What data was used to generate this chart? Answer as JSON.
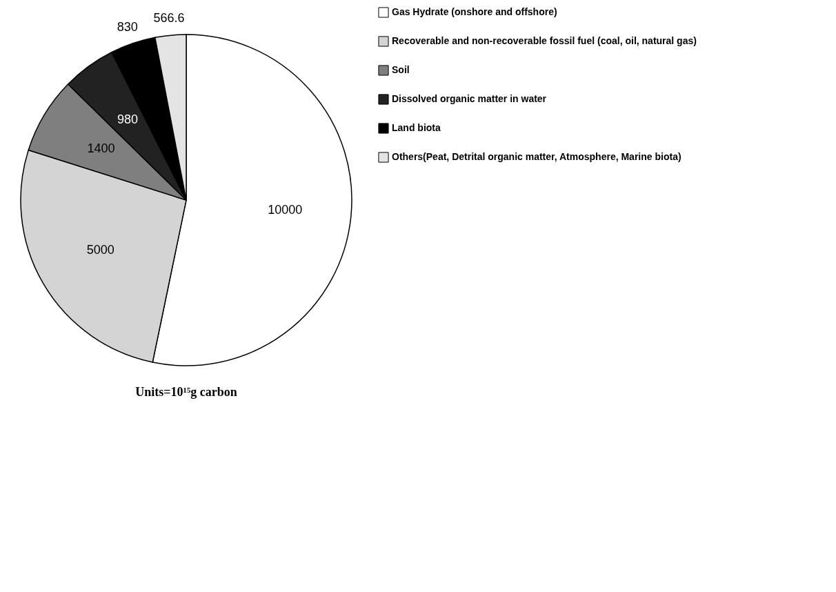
{
  "chart_data": {
    "type": "pie",
    "categories": [
      "Gas Hydrate (onshore and offshore)",
      "Recoverable and non-recoverable fossil fuel (coal, oil, natural gas)",
      "Soil",
      "Dissolved organic matter in water",
      "Land biota",
      "Others(Peat, Detrital organic matter, Atmosphere, Marine biota)"
    ],
    "values": [
      10000,
      5000,
      1400,
      980,
      830,
      566.6
    ],
    "colors": [
      "#ffffff",
      "#d4d4d4",
      "#7f7f7f",
      "#222222",
      "#000000",
      "#e4e4e4"
    ],
    "data_labels": true,
    "legend": "right",
    "annotations": [
      "Units=10¹⁵g carbon"
    ]
  }
}
